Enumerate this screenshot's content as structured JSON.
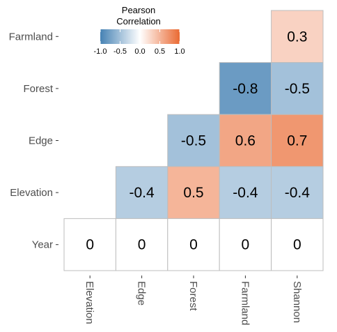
{
  "chart_data": {
    "type": "heatmap",
    "rows": [
      "Farmland",
      "Forest",
      "Edge",
      "Elevation",
      "Year"
    ],
    "columns": [
      "Elevation",
      "Edge",
      "Forest",
      "Farmland",
      "Shannon"
    ],
    "cells": [
      {
        "row": "Farmland",
        "col": "Shannon",
        "value": 0.3,
        "label": "0.3"
      },
      {
        "row": "Forest",
        "col": "Farmland",
        "value": -0.8,
        "label": "-0.8"
      },
      {
        "row": "Forest",
        "col": "Shannon",
        "value": -0.5,
        "label": "-0.5"
      },
      {
        "row": "Edge",
        "col": "Forest",
        "value": -0.5,
        "label": "-0.5"
      },
      {
        "row": "Edge",
        "col": "Farmland",
        "value": 0.6,
        "label": "0.6"
      },
      {
        "row": "Edge",
        "col": "Shannon",
        "value": 0.7,
        "label": "0.7"
      },
      {
        "row": "Elevation",
        "col": "Edge",
        "value": -0.4,
        "label": "-0.4"
      },
      {
        "row": "Elevation",
        "col": "Forest",
        "value": 0.5,
        "label": "0.5"
      },
      {
        "row": "Elevation",
        "col": "Farmland",
        "value": -0.4,
        "label": "-0.4"
      },
      {
        "row": "Elevation",
        "col": "Shannon",
        "value": -0.4,
        "label": "-0.4"
      },
      {
        "row": "Year",
        "col": "Elevation",
        "value": 0,
        "label": "0"
      },
      {
        "row": "Year",
        "col": "Edge",
        "value": 0,
        "label": "0"
      },
      {
        "row": "Year",
        "col": "Forest",
        "value": 0,
        "label": "0"
      },
      {
        "row": "Year",
        "col": "Farmland",
        "value": 0,
        "label": "0"
      },
      {
        "row": "Year",
        "col": "Shannon",
        "value": 0,
        "label": "0"
      }
    ],
    "legend": {
      "title_line1": "Pearson",
      "title_line2": "Correlation",
      "ticks": [
        -1.0,
        -0.5,
        0.0,
        0.5,
        1.0
      ],
      "tick_labels": [
        "-1.0",
        "-0.5",
        "0.0",
        "0.5",
        "1.0"
      ],
      "range": [
        -1,
        1
      ],
      "placement": "top-left"
    },
    "colors": {
      "low": "#4682b4",
      "mid": "#ffffff",
      "high": "#ea6a33",
      "cell_border": "#bdbdbd"
    },
    "grid": false
  }
}
